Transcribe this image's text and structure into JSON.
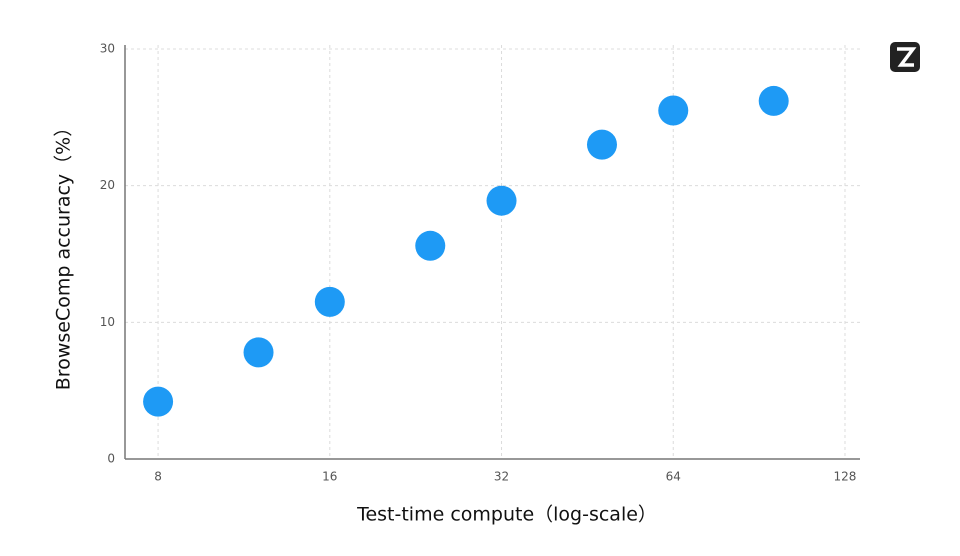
{
  "chart_data": {
    "type": "scatter",
    "x_label": "Test-time compute（log-scale）",
    "y_label": "BrowseComp accuracy（%）",
    "x": [
      8,
      12,
      16,
      24,
      32,
      48,
      64,
      96
    ],
    "values": [
      4.2,
      7.8,
      11.5,
      15.6,
      18.9,
      23.0,
      25.5,
      26.2
    ],
    "color": "#1e9af5",
    "xscale": "log",
    "xlim": [
      7,
      136
    ],
    "xticks": [
      8,
      16,
      32,
      64,
      128
    ],
    "ylim": [
      0,
      30
    ],
    "yticks": [
      0,
      10,
      20,
      30
    ],
    "grid": true
  }
}
